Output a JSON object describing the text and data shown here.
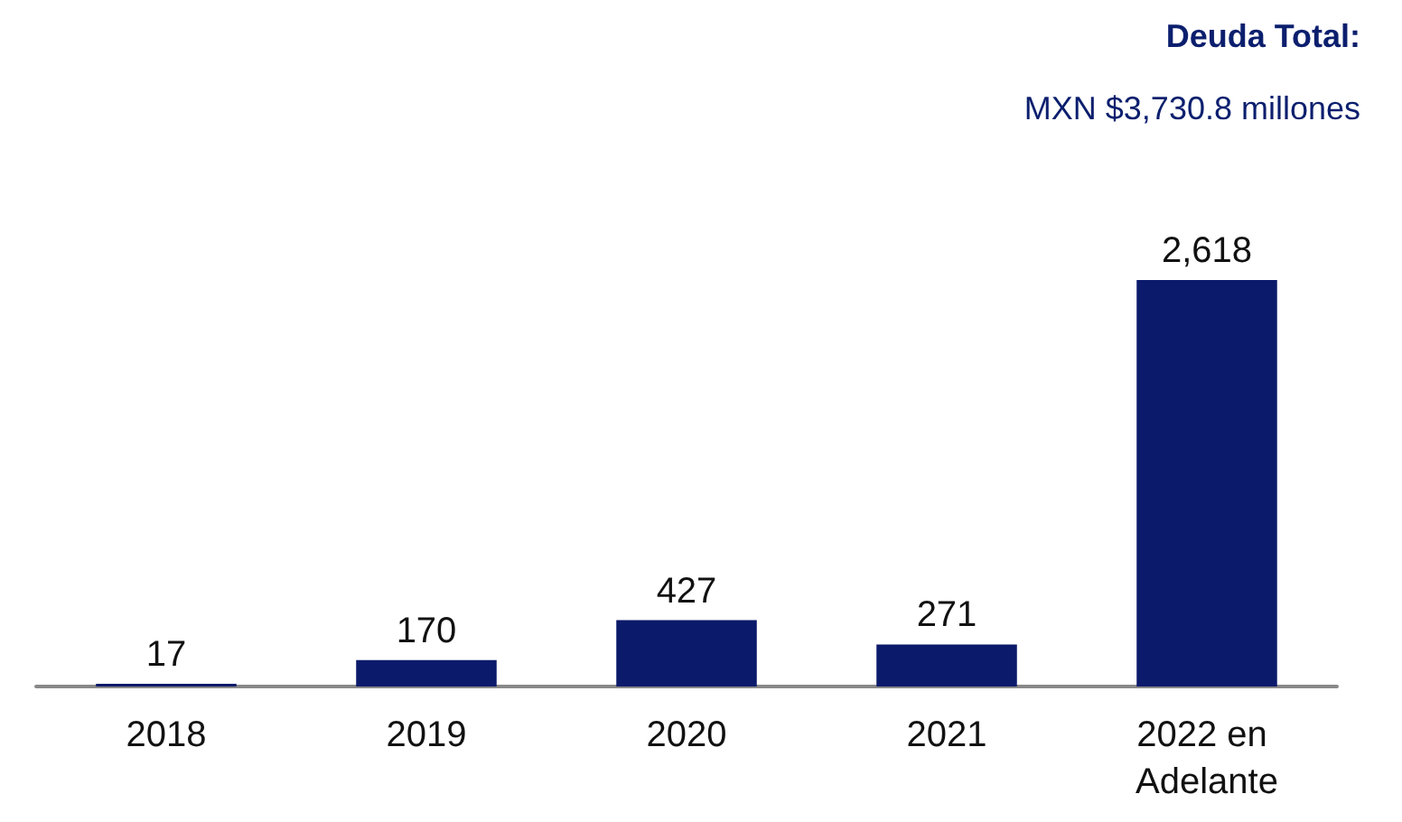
{
  "chart_data": {
    "type": "bar",
    "title": "Deuda Total:",
    "subtitle": "MXN $3,730.8 millones",
    "categories": [
      "2018",
      "2019",
      "2020",
      "2021",
      "2022 en Adelante"
    ],
    "values": [
      17,
      170,
      427,
      271,
      2618
    ],
    "value_labels": [
      "17",
      "170",
      "427",
      "271",
      "2,618"
    ],
    "color": "#0c1a6b",
    "grid": false
  }
}
